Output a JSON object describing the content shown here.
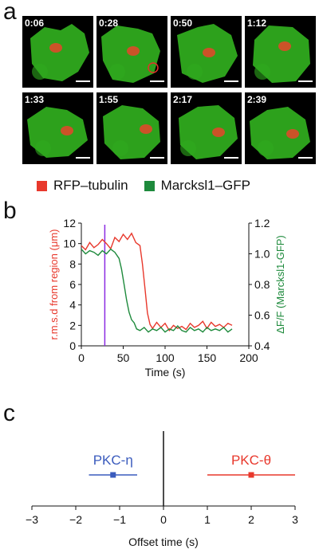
{
  "panels": {
    "a": "a",
    "b": "b",
    "c": "c"
  },
  "micrographs": {
    "timestamps": [
      "0:06",
      "0:28",
      "0:50",
      "1:12",
      "1:33",
      "1:55",
      "2:17",
      "2:39"
    ],
    "colors": {
      "green": "#2faa1e",
      "red": "#e8452a",
      "circle": "#e0332a"
    }
  },
  "legend": {
    "items": [
      {
        "label": "RFP–tubulin",
        "color": "#e8382c"
      },
      {
        "label": "Marcksl1–GFP",
        "color": "#1e8a3c"
      }
    ]
  },
  "chart_data": [
    {
      "type": "line",
      "panel": "b",
      "xlabel": "Time (s)",
      "ylabel_left": "r.m.s.d from region (μm)",
      "ylabel_right": "ΔF/F (Marcksl1-GFP)",
      "xlim": [
        0,
        200
      ],
      "xticks": [
        0,
        50,
        100,
        150,
        200
      ],
      "ylim_left": [
        0,
        12
      ],
      "yticks_left": [
        0,
        2,
        4,
        6,
        8,
        10,
        12
      ],
      "ylim_right": [
        0.4,
        1.2
      ],
      "yticks_right": [
        "0.4",
        "0.6",
        "0.8",
        "1.0",
        "1.2"
      ],
      "marker_line_x": 28,
      "marker_line_color": "#8a2be2",
      "series": [
        {
          "name": "RFP–tubulin",
          "axis": "left",
          "color": "#e8382c",
          "x": [
            0,
            5,
            10,
            15,
            20,
            25,
            30,
            35,
            40,
            45,
            50,
            55,
            60,
            65,
            70,
            73,
            76,
            79,
            82,
            85,
            90,
            95,
            100,
            105,
            110,
            115,
            120,
            125,
            130,
            135,
            140,
            145,
            150,
            155,
            160,
            165,
            170,
            175,
            180
          ],
          "y": [
            9.8,
            9.4,
            10.1,
            9.6,
            9.9,
            10.4,
            10.0,
            9.5,
            10.6,
            10.2,
            10.9,
            10.4,
            11.0,
            10.1,
            9.8,
            8.0,
            5.6,
            3.2,
            2.1,
            1.7,
            2.3,
            1.8,
            2.2,
            1.5,
            2.0,
            1.7,
            1.9,
            1.6,
            2.2,
            1.8,
            2.0,
            2.4,
            1.7,
            2.3,
            1.9,
            2.1,
            1.8,
            2.2,
            2.0
          ]
        },
        {
          "name": "Marcksl1–GFP",
          "axis": "right",
          "color": "#1e8a3c",
          "x": [
            0,
            5,
            10,
            15,
            20,
            25,
            30,
            35,
            40,
            45,
            48,
            51,
            54,
            57,
            60,
            63,
            66,
            70,
            75,
            80,
            85,
            90,
            95,
            100,
            105,
            110,
            115,
            120,
            125,
            130,
            135,
            140,
            145,
            150,
            155,
            160,
            165,
            170,
            175,
            180
          ],
          "y": [
            1.03,
            1.0,
            1.02,
            1.01,
            0.99,
            1.02,
            1.0,
            1.03,
            1.01,
            0.97,
            0.9,
            0.8,
            0.7,
            0.62,
            0.57,
            0.55,
            0.51,
            0.5,
            0.52,
            0.49,
            0.51,
            0.5,
            0.52,
            0.49,
            0.51,
            0.5,
            0.53,
            0.5,
            0.49,
            0.52,
            0.5,
            0.51,
            0.49,
            0.52,
            0.5,
            0.51,
            0.5,
            0.52,
            0.49,
            0.51
          ]
        }
      ]
    },
    {
      "type": "scatter",
      "panel": "c",
      "xlabel": "Offset time (s)",
      "xlim": [
        -3,
        3
      ],
      "xticks": [
        -3,
        -2,
        -1,
        0,
        1,
        2,
        3
      ],
      "xticklabels": [
        "−3",
        "−2",
        "−1",
        "0",
        "1",
        "2",
        "3"
      ],
      "points": [
        {
          "name": "PKC-η",
          "x": -1.15,
          "err_low": -1.7,
          "err_high": -0.6,
          "color": "#3a5bbd"
        },
        {
          "name": "PKC-θ",
          "x": 2.0,
          "err_low": 1.0,
          "err_high": 3.0,
          "color": "#e8382c"
        }
      ]
    }
  ]
}
